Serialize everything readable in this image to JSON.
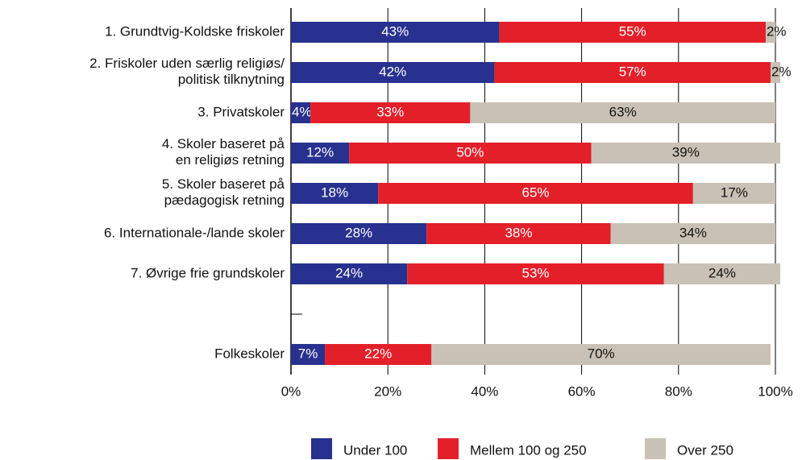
{
  "chart_data": {
    "type": "stacked_bar_horizontal",
    "categories": [
      "1. Grundtvig-Koldske friskoler",
      "2. Friskoler uden særlig religiøs/\npolitisk tilknytning",
      "3. Privatskoler",
      "4. Skoler baseret på\nen religiøs retning",
      "5. Skoler baseret på\npædagogisk retning",
      "6. Internationale-/lande skoler",
      "7. Øvrige frie grundskoler",
      null,
      "Folkeskoler"
    ],
    "series": [
      {
        "name": "Under 100",
        "color": "#28318f",
        "values": [
          43,
          42,
          4,
          12,
          18,
          28,
          24,
          null,
          7
        ],
        "value_labels": [
          "43%",
          "42%",
          "4%",
          "12%",
          "18%",
          "28%",
          "24%",
          null,
          "7%"
        ]
      },
      {
        "name": "Mellem 100 og 250",
        "color": "#e3202a",
        "values": [
          55,
          57,
          33,
          50,
          65,
          38,
          53,
          null,
          22
        ],
        "value_labels": [
          "55%",
          "57%",
          "33%",
          "50%",
          "65%",
          "38%",
          "53%",
          null,
          "22%"
        ]
      },
      {
        "name": "Over 250",
        "color": "#c9c1b5",
        "values": [
          2,
          2,
          63,
          39,
          17,
          34,
          24,
          null,
          70
        ],
        "value_labels": [
          "2%",
          "2%",
          "63%",
          "39%",
          "17%",
          "34%",
          "24%",
          null,
          "70%"
        ]
      }
    ],
    "xlim": [
      0,
      100
    ],
    "xticks": [
      {
        "value": 0,
        "label": "0%"
      },
      {
        "value": 20,
        "label": "20%"
      },
      {
        "value": 40,
        "label": "40%"
      },
      {
        "value": 60,
        "label": "60%"
      },
      {
        "value": 80,
        "label": "80%"
      },
      {
        "value": 100,
        "label": "100%"
      }
    ],
    "grid": true,
    "legend": "bottom"
  }
}
